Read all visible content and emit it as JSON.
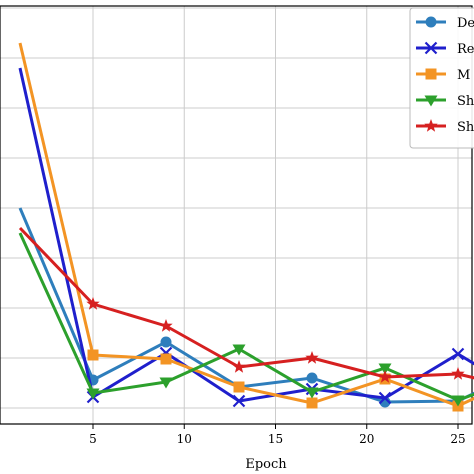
{
  "chart_data": {
    "type": "line",
    "xlabel": "Epoch",
    "ylabel": "",
    "title": "",
    "xlim": [
      1,
      26.5
    ],
    "ylim": [
      0,
      8.4
    ],
    "x_ticks": [
      5,
      10,
      15,
      20,
      25
    ],
    "x_tick_labels": [
      "5",
      "10",
      "15",
      "20",
      "25"
    ],
    "grid": true,
    "legend_position": "top-right",
    "series": [
      {
        "name": "De",
        "color": "#2e7ebc",
        "marker": "circle",
        "x": [
          1,
          5,
          9,
          13,
          17,
          21,
          25,
          26.5
        ],
        "y": [
          4.0,
          0.56,
          1.32,
          0.42,
          0.6,
          0.12,
          0.14,
          0.4
        ]
      },
      {
        "name": "Re",
        "color": "#1f1fcc",
        "marker": "x",
        "x": [
          1,
          5,
          9,
          13,
          17,
          21,
          25,
          26.5
        ],
        "y": [
          6.8,
          0.22,
          1.1,
          0.14,
          0.38,
          0.2,
          1.08,
          0.75
        ]
      },
      {
        "name": "M",
        "color": "#f39424",
        "marker": "square",
        "x": [
          1,
          5,
          9,
          13,
          17,
          21,
          25,
          26.5
        ],
        "y": [
          7.3,
          1.06,
          0.98,
          0.42,
          0.1,
          0.58,
          0.04,
          0.3
        ]
      },
      {
        "name": "Sh",
        "color": "#2ca02c",
        "marker": "triangle-down",
        "x": [
          1,
          5,
          9,
          13,
          17,
          21,
          25,
          26.5
        ],
        "y": [
          3.5,
          0.3,
          0.52,
          1.18,
          0.32,
          0.8,
          0.16,
          0.35
        ]
      },
      {
        "name": "Sh",
        "color": "#d62020",
        "marker": "star",
        "x": [
          1,
          5,
          9,
          13,
          17,
          21,
          25,
          26.5
        ],
        "y": [
          3.6,
          2.08,
          1.64,
          0.82,
          1.0,
          0.62,
          0.68,
          0.55
        ]
      }
    ]
  }
}
